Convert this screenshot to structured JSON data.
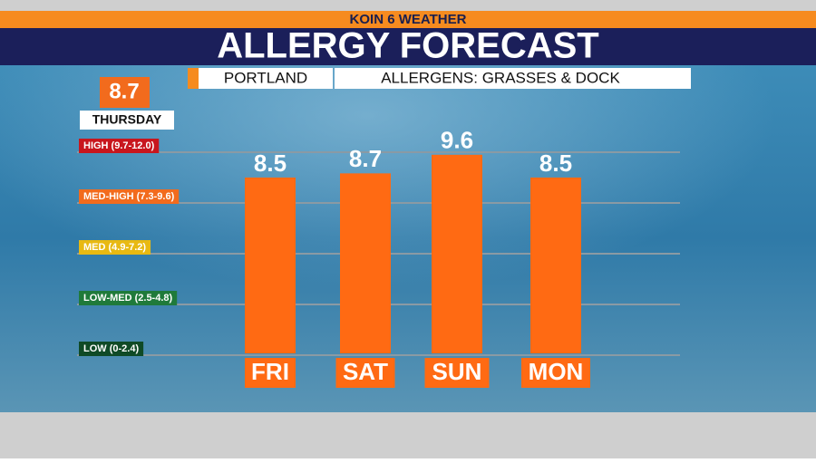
{
  "chart_data": {
    "type": "bar",
    "header": "KOIN 6 WEATHER",
    "title": "ALLERGY FORECAST",
    "location": "PORTLAND",
    "subtitle": "ALLERGENS: GRASSES & DOCK",
    "today": {
      "value": 8.7,
      "day": "THURSDAY"
    },
    "levels": [
      {
        "label": "HIGH (9.7-12.0)",
        "color": "#c8161d"
      },
      {
        "label": "MED-HIGH (7.3-9.6)",
        "color": "#f26b1d"
      },
      {
        "label": "MED (4.9-7.2)",
        "color": "#e8b912"
      },
      {
        "label": "LOW-MED (2.5-4.8)",
        "color": "#1f7a3a"
      },
      {
        "label": "LOW (0-2.4)",
        "color": "#0f4a26"
      }
    ],
    "categories": [
      "FRI",
      "SAT",
      "SUN",
      "MON"
    ],
    "values": [
      8.5,
      8.7,
      9.6,
      8.5
    ],
    "color": "#ff6a13",
    "ylim": [
      0,
      12
    ]
  }
}
